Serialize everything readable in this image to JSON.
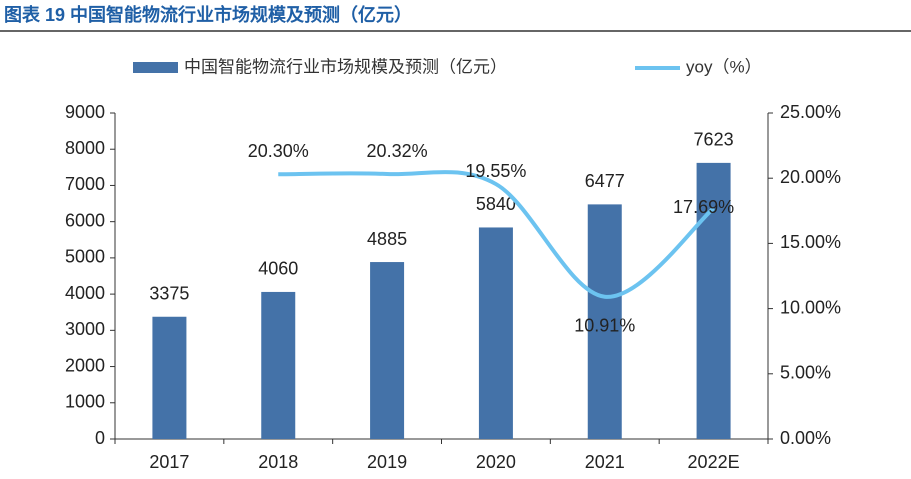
{
  "chart_data": {
    "type": "bar_line",
    "title": "图表 19 中国智能物流行业市场规模及预测（亿元）",
    "categories": [
      "2017",
      "2018",
      "2019",
      "2020",
      "2021",
      "2022E"
    ],
    "series": [
      {
        "name": "中国智能物流行业市场规模及预测（亿元）",
        "type": "bar",
        "color": "#4472a8",
        "values": [
          3375,
          4060,
          4885,
          5840,
          6477,
          7623
        ]
      },
      {
        "name": "yoy（%）",
        "type": "line",
        "axis": "y2",
        "color": "#6cc3f0",
        "values": [
          null,
          20.3,
          20.32,
          19.55,
          10.91,
          17.69
        ],
        "value_labels": [
          null,
          "20.30%",
          "20.32%",
          "19.55%",
          "10.91%",
          "17.69%"
        ]
      }
    ],
    "ylim": [
      0,
      9000
    ],
    "yticks": [
      0,
      1000,
      2000,
      3000,
      4000,
      5000,
      6000,
      7000,
      8000,
      9000
    ],
    "y2lim": [
      0,
      25
    ],
    "y2ticks": [
      {
        "value": 0,
        "label": "0.00%"
      },
      {
        "value": 5,
        "label": "5.00%"
      },
      {
        "value": 10,
        "label": "10.00%"
      },
      {
        "value": 15,
        "label": "15.00%"
      },
      {
        "value": 20,
        "label": "20.00%"
      },
      {
        "value": 25,
        "label": "25.00%"
      }
    ],
    "legend": "top"
  }
}
